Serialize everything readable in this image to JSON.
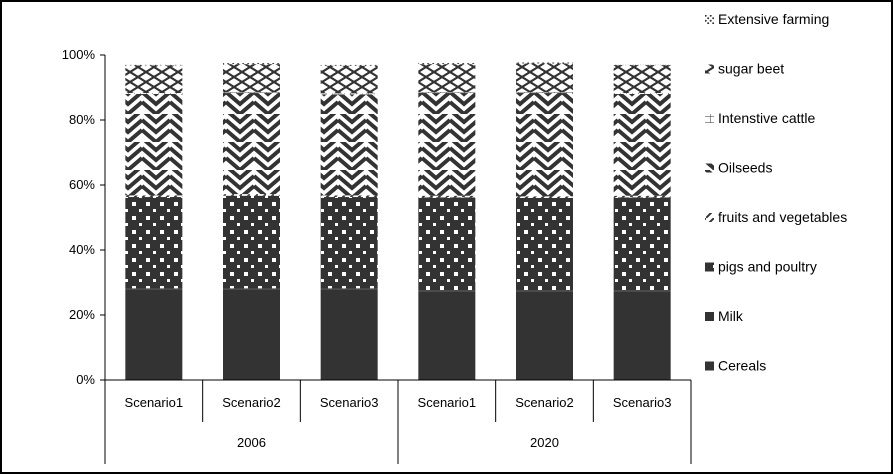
{
  "chart_data": {
    "type": "bar",
    "stacked": true,
    "orientation": "vertical",
    "title": "",
    "xlabel": "",
    "ylabel": "",
    "ylim": [
      0,
      100
    ],
    "y_ticks": [
      "0%",
      "20%",
      "40%",
      "60%",
      "80%",
      "100%"
    ],
    "categories": [
      "Scenario1",
      "Scenario2",
      "Scenario3",
      "Scenario1",
      "Scenario2",
      "Scenario3"
    ],
    "groups": [
      {
        "label": "2006",
        "categories": [
          "Scenario1",
          "Scenario2",
          "Scenario3"
        ]
      },
      {
        "label": "2020",
        "categories": [
          "Scenario1",
          "Scenario2",
          "Scenario3"
        ]
      }
    ],
    "legend_position": "right",
    "grid": false,
    "series": [
      {
        "name": "Cereals",
        "values": [
          27.9,
          27.9,
          27.9,
          27.3,
          27.3,
          27.3
        ],
        "pattern": "solid"
      },
      {
        "name": "Milk",
        "values": [
          0.3,
          0.3,
          0.3,
          0.3,
          0.3,
          0.3
        ],
        "pattern": "solid"
      },
      {
        "name": "pigs and poultry",
        "values": [
          28.1,
          28.5,
          28.1,
          28.6,
          28.4,
          28.6
        ],
        "pattern": "dots"
      },
      {
        "name": "fruits and vegetables",
        "values": [
          0.5,
          0.5,
          0.5,
          0.5,
          0.5,
          0.5
        ],
        "pattern": "stripe"
      },
      {
        "name": "Oilseeds",
        "values": [
          31.2,
          31.1,
          31.1,
          31.6,
          31.8,
          31.3
        ],
        "pattern": "chevron"
      },
      {
        "name": "Intenstive cattle",
        "values": [
          0.3,
          0.3,
          0.3,
          0.3,
          0.3,
          0.3
        ],
        "pattern": "grid"
      },
      {
        "name": "sugar beet",
        "values": [
          8.5,
          8.6,
          8.5,
          8.6,
          8.8,
          8.6
        ],
        "pattern": "zigzag"
      },
      {
        "name": "Extensive farming",
        "values": [
          0.3,
          0.3,
          0.3,
          0.3,
          0.3,
          0.3
        ],
        "pattern": "fine-dots"
      }
    ]
  },
  "legend": {
    "items": [
      {
        "label": "Extensive farming",
        "marker": "fine-dots"
      },
      {
        "label": "sugar beet",
        "marker": "zigzag"
      },
      {
        "label": "Intenstive cattle",
        "marker": "grid"
      },
      {
        "label": "Oilseeds",
        "marker": "chevron"
      },
      {
        "label": "fruits and vegetables",
        "marker": "stripe"
      },
      {
        "label": "pigs and poultry",
        "marker": "dots"
      },
      {
        "label": "Milk",
        "marker": "solid"
      },
      {
        "label": "Cereals",
        "marker": "solid"
      }
    ]
  },
  "colors": {
    "fill": "#333333",
    "axis": "#000000",
    "background": "#ffffff"
  }
}
